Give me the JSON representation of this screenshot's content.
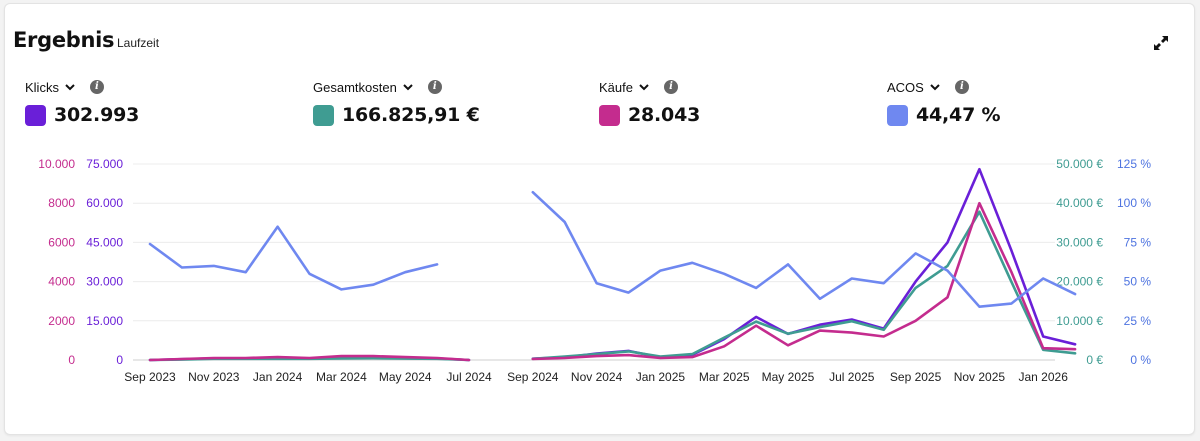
{
  "header": {
    "title": "Ergebnis",
    "subtitle": "Laufzeit"
  },
  "icons": {
    "expand": "expand-icon",
    "dropdown": "chevron-down-icon",
    "info": "info-icon"
  },
  "metrics": [
    {
      "label": "Klicks",
      "value": "302.993",
      "color": "#6a1fd8"
    },
    {
      "label": "Gesamtkosten",
      "value": "166.825,91 €",
      "color": "#3f9c92"
    },
    {
      "label": "Käufe",
      "value": "28.043",
      "color": "#c42c8e"
    },
    {
      "label": "ACOS",
      "value": "44,47 %",
      "color": "#6f88f0"
    }
  ],
  "chart_data": {
    "type": "line",
    "x": [
      "Sep 2023",
      "Oct 2023",
      "Nov 2023",
      "Dec 2023",
      "Jan 2024",
      "Feb 2024",
      "Mar 2024",
      "Apr 2024",
      "May 2024",
      "Jun 2024",
      "Jul 2024",
      "Aug 2024",
      "Sep 2024",
      "Oct 2024",
      "Nov 2024",
      "Dec 2024",
      "Jan 2025",
      "Feb 2025",
      "Mar 2025",
      "Apr 2025",
      "May 2025",
      "Jun 2025",
      "Jul 2025",
      "Aug 2025",
      "Sep 2025",
      "Oct 2025",
      "Nov 2025",
      "Dec 2025",
      "Jan 2026",
      "Feb 2026"
    ],
    "x_tick_labels": [
      "Sep 2023",
      "Nov 2023",
      "Jan 2024",
      "Mar 2024",
      "May 2024",
      "Jul 2024",
      "Sep 2024",
      "Nov 2024",
      "Jan 2025",
      "Mar 2025",
      "May 2025",
      "Jul 2025",
      "Sep 2025",
      "Nov 2025",
      "Jan 2026"
    ],
    "axes": {
      "kaeufe": {
        "ticks": [
          "0",
          "2000",
          "4000",
          "6000",
          "8000",
          "10.000"
        ],
        "ylim": [
          0,
          10000
        ],
        "color": "#c42c8e"
      },
      "klicks": {
        "ticks": [
          "0",
          "15.000",
          "30.000",
          "45.000",
          "60.000",
          "75.000"
        ],
        "ylim": [
          0,
          75000
        ],
        "color": "#6a1fd8"
      },
      "kosten": {
        "ticks": [
          "0 €",
          "10.000 €",
          "20.000 €",
          "30.000 €",
          "40.000 €",
          "50.000 €"
        ],
        "ylim": [
          0,
          50000
        ],
        "color": "#3f9c92"
      },
      "acos": {
        "ticks": [
          "0 %",
          "25 %",
          "50 %",
          "75 %",
          "100 %",
          "125 %"
        ],
        "ylim": [
          0,
          125
        ],
        "color": "#4d73e0"
      }
    },
    "series": [
      {
        "name": "Klicks",
        "axis": "klicks",
        "color": "#6a1fd8",
        "values": [
          0,
          300,
          600,
          500,
          700,
          500,
          900,
          1000,
          700,
          600,
          0,
          null,
          500,
          1000,
          2500,
          3500,
          1000,
          2000,
          8000,
          16500,
          10000,
          13500,
          15500,
          12000,
          30000,
          45000,
          73000,
          42000,
          9000,
          6000
        ]
      },
      {
        "name": "Gesamtkosten",
        "axis": "kosten",
        "color": "#3f9c92",
        "values": [
          0,
          100,
          300,
          300,
          300,
          300,
          400,
          450,
          350,
          300,
          0,
          null,
          300,
          900,
          1500,
          2200,
          900,
          1500,
          5700,
          9800,
          6700,
          8400,
          9900,
          7700,
          18400,
          24000,
          37800,
          20000,
          2600,
          1700
        ]
      },
      {
        "name": "Käufe",
        "axis": "kaeufe",
        "color": "#c42c8e",
        "values": [
          0,
          50,
          100,
          100,
          150,
          100,
          200,
          200,
          150,
          100,
          0,
          null,
          50,
          100,
          200,
          250,
          100,
          150,
          700,
          1750,
          750,
          1500,
          1400,
          1200,
          2000,
          3200,
          8000,
          4500,
          600,
          550
        ]
      },
      {
        "name": "ACOS",
        "axis": "acos",
        "color": "#6f88f0",
        "values": [
          74,
          59,
          60,
          56,
          85,
          55,
          45,
          48,
          56,
          61,
          null,
          null,
          107,
          88,
          49,
          43,
          57,
          62,
          55,
          46,
          61,
          39,
          52,
          49,
          68,
          57,
          34,
          36,
          52,
          42
        ]
      }
    ],
    "grid": true,
    "legend": "top"
  }
}
